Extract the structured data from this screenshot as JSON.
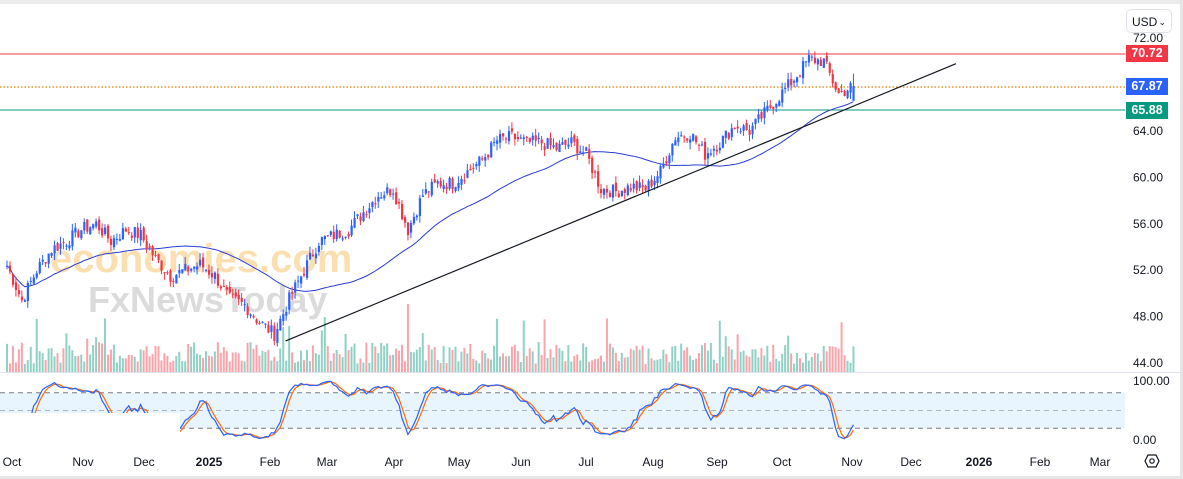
{
  "currency_selector": {
    "label": "USD",
    "chevron": "chevron-down-icon"
  },
  "price_tags": {
    "resistance": "70.72",
    "last": "67.87",
    "support": "65.88"
  },
  "colors": {
    "up": "#2962ff",
    "down": "#f23645",
    "resistance": "#f23645",
    "last": "#2962ff",
    "support": "#089981",
    "ma": "#2a3cd6",
    "stoch_k": "#2962ff",
    "stoch_d": "#ff6d00",
    "trendline": "#131722"
  },
  "watermark": {
    "line1": "economies.com",
    "line2": "FxNewsToday"
  },
  "chart_data": {
    "type": "candlestick",
    "price_axis": {
      "ticks": [
        "72.00",
        "64.00",
        "60.00",
        "56.00",
        "52.00",
        "48.00",
        "44.00"
      ],
      "range": [
        44,
        72
      ]
    },
    "stoch_axis": {
      "ticks": [
        "100.00",
        "0.00"
      ],
      "range": [
        0,
        100
      ],
      "bands": [
        20,
        50,
        80
      ]
    },
    "time_axis": [
      "Oct",
      "Nov",
      "Dec",
      "2025",
      "Feb",
      "Mar",
      "Apr",
      "May",
      "Jun",
      "Jul",
      "Aug",
      "Sep",
      "Oct",
      "Nov",
      "Dec",
      "2026",
      "Feb",
      "Mar"
    ],
    "start_date": "2024-10-01",
    "weekly_close": [
      52.4,
      49.4,
      52,
      53.8,
      54.5,
      55.5,
      56,
      54.5,
      55.5,
      55,
      53,
      51.5,
      52,
      52.5,
      51.5,
      49.5,
      49,
      47.5,
      46.5,
      49.5,
      52,
      54.5,
      55,
      55.5,
      57,
      58.5,
      59,
      55.5,
      58.5,
      59.5,
      59.5,
      60.5,
      61.5,
      63.2,
      63.5,
      63,
      63,
      62.5,
      63,
      62,
      59,
      58.8,
      59.2,
      59,
      60.5,
      63.5,
      63.8,
      62,
      63,
      64.5,
      64,
      65.5,
      67,
      68.5,
      70.2,
      70,
      67.2,
      67.87
    ],
    "horizontal_levels": {
      "resistance": 70.72,
      "last": 67.87,
      "support": 65.88
    },
    "trendline": {
      "from": [
        "2025-02-07",
        45.9
      ],
      "to": [
        "2025-12-20",
        69.8
      ]
    },
    "moving_average_period": 50,
    "indicators": [
      "Volume",
      "Stochastic"
    ]
  }
}
